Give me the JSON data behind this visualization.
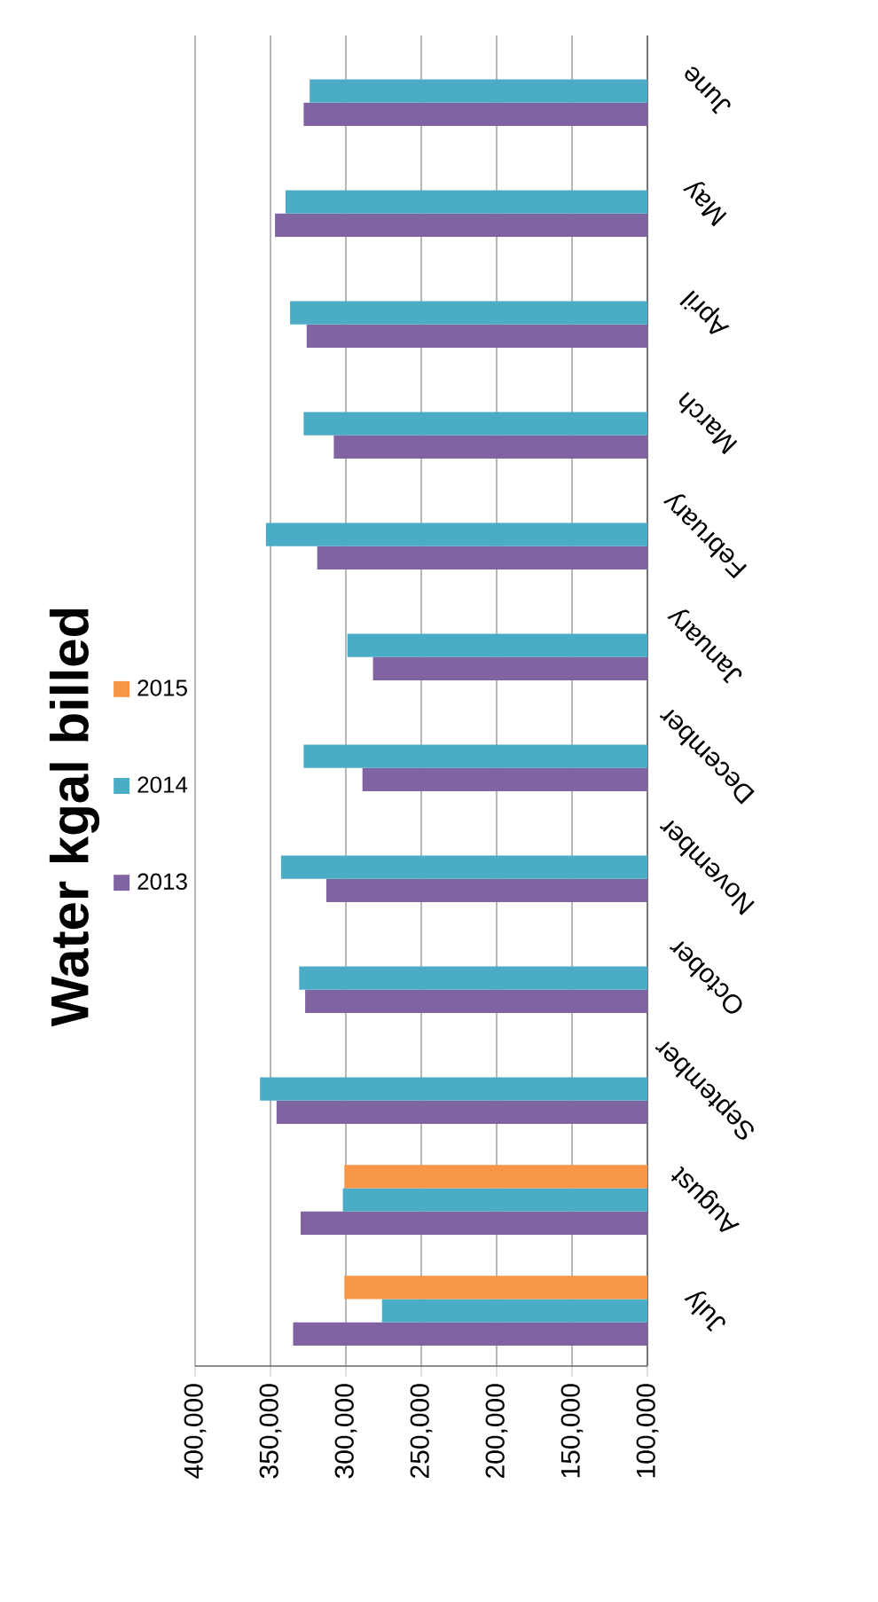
{
  "chart_data": {
    "type": "bar",
    "title": "Water kgal billed",
    "orientation": "horizontal",
    "categories": [
      "June",
      "May",
      "April",
      "March",
      "February",
      "January",
      "December",
      "November",
      "October",
      "September",
      "August",
      "July"
    ],
    "series": [
      {
        "name": "2013",
        "color": "#8064a2",
        "values": [
          328000,
          347000,
          326000,
          308000,
          319000,
          282000,
          289000,
          313000,
          327000,
          346000,
          330000,
          335000
        ]
      },
      {
        "name": "2014",
        "color": "#4bacc6",
        "values": [
          324000,
          340000,
          337000,
          328000,
          353000,
          299000,
          328000,
          343000,
          331000,
          357000,
          302000,
          276000
        ]
      },
      {
        "name": "2015",
        "color": "#f79646",
        "values": [
          null,
          null,
          null,
          null,
          null,
          null,
          null,
          null,
          null,
          null,
          301000,
          301000
        ]
      }
    ],
    "xlim": [
      400000,
      100000
    ],
    "xticks": [
      {
        "value": 400000,
        "label": "400,000"
      },
      {
        "value": 350000,
        "label": "350,000"
      },
      {
        "value": 300000,
        "label": "300,000"
      },
      {
        "value": 250000,
        "label": "250,000"
      },
      {
        "value": 200000,
        "label": "200,000"
      },
      {
        "value": 150000,
        "label": "150,000"
      },
      {
        "value": 100000,
        "label": "100,000"
      }
    ],
    "grid": "x",
    "legend": "left"
  }
}
